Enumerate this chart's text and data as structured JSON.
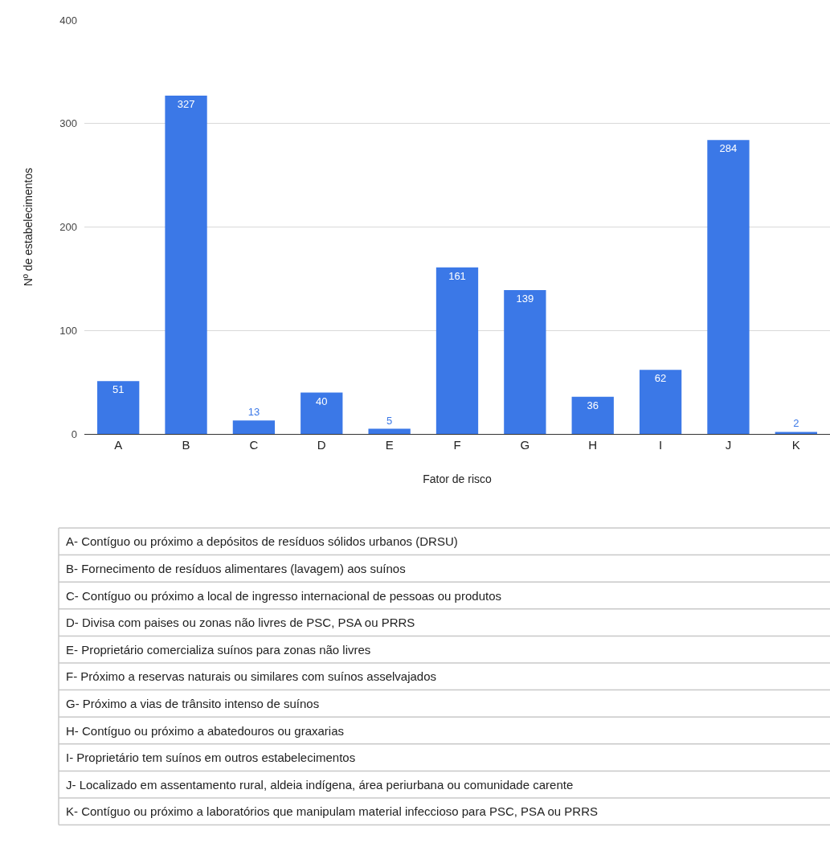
{
  "chart_data": {
    "type": "bar",
    "xlabel": "Fator de risco",
    "ylabel": "Nº de estabelecimentos",
    "categories": [
      "A",
      "B",
      "C",
      "D",
      "E",
      "F",
      "G",
      "H",
      "I",
      "J",
      "K"
    ],
    "values": [
      51,
      327,
      13,
      40,
      5,
      161,
      139,
      36,
      62,
      284,
      2
    ],
    "color": "#3b78e7",
    "data_labels": true,
    "ylim": [
      0,
      400
    ],
    "yticks": [
      0,
      100,
      200,
      300,
      400
    ],
    "grid": "y",
    "annotations": [
      "A- Contíguo ou próximo a depósitos de resíduos sólidos urbanos (DRSU)",
      "B- Fornecimento de resíduos alimentares (lavagem) aos suínos",
      "C- Contíguo ou próximo a local de ingresso internacional de pessoas ou produtos",
      "D- Divisa com paises ou zonas não livres de PSC, PSA ou PRRS",
      "E- Proprietário comercializa suínos para zonas não livres",
      "F- Próximo a reservas naturais ou similares com suínos asselvajados",
      "G- Próximo a vias de trânsito intenso de suínos",
      "H- Contíguo ou próximo a abatedouros ou graxarias",
      "I- Proprietário tem suínos em outros estabelecimentos",
      "J- Localizado em assentamento rural, aldeia indígena, área periurbana ou comunidade carente",
      "K- Contíguo ou próximo a laboratórios que manipulam material infeccioso para PSC, PSA ou PRRS"
    ]
  }
}
